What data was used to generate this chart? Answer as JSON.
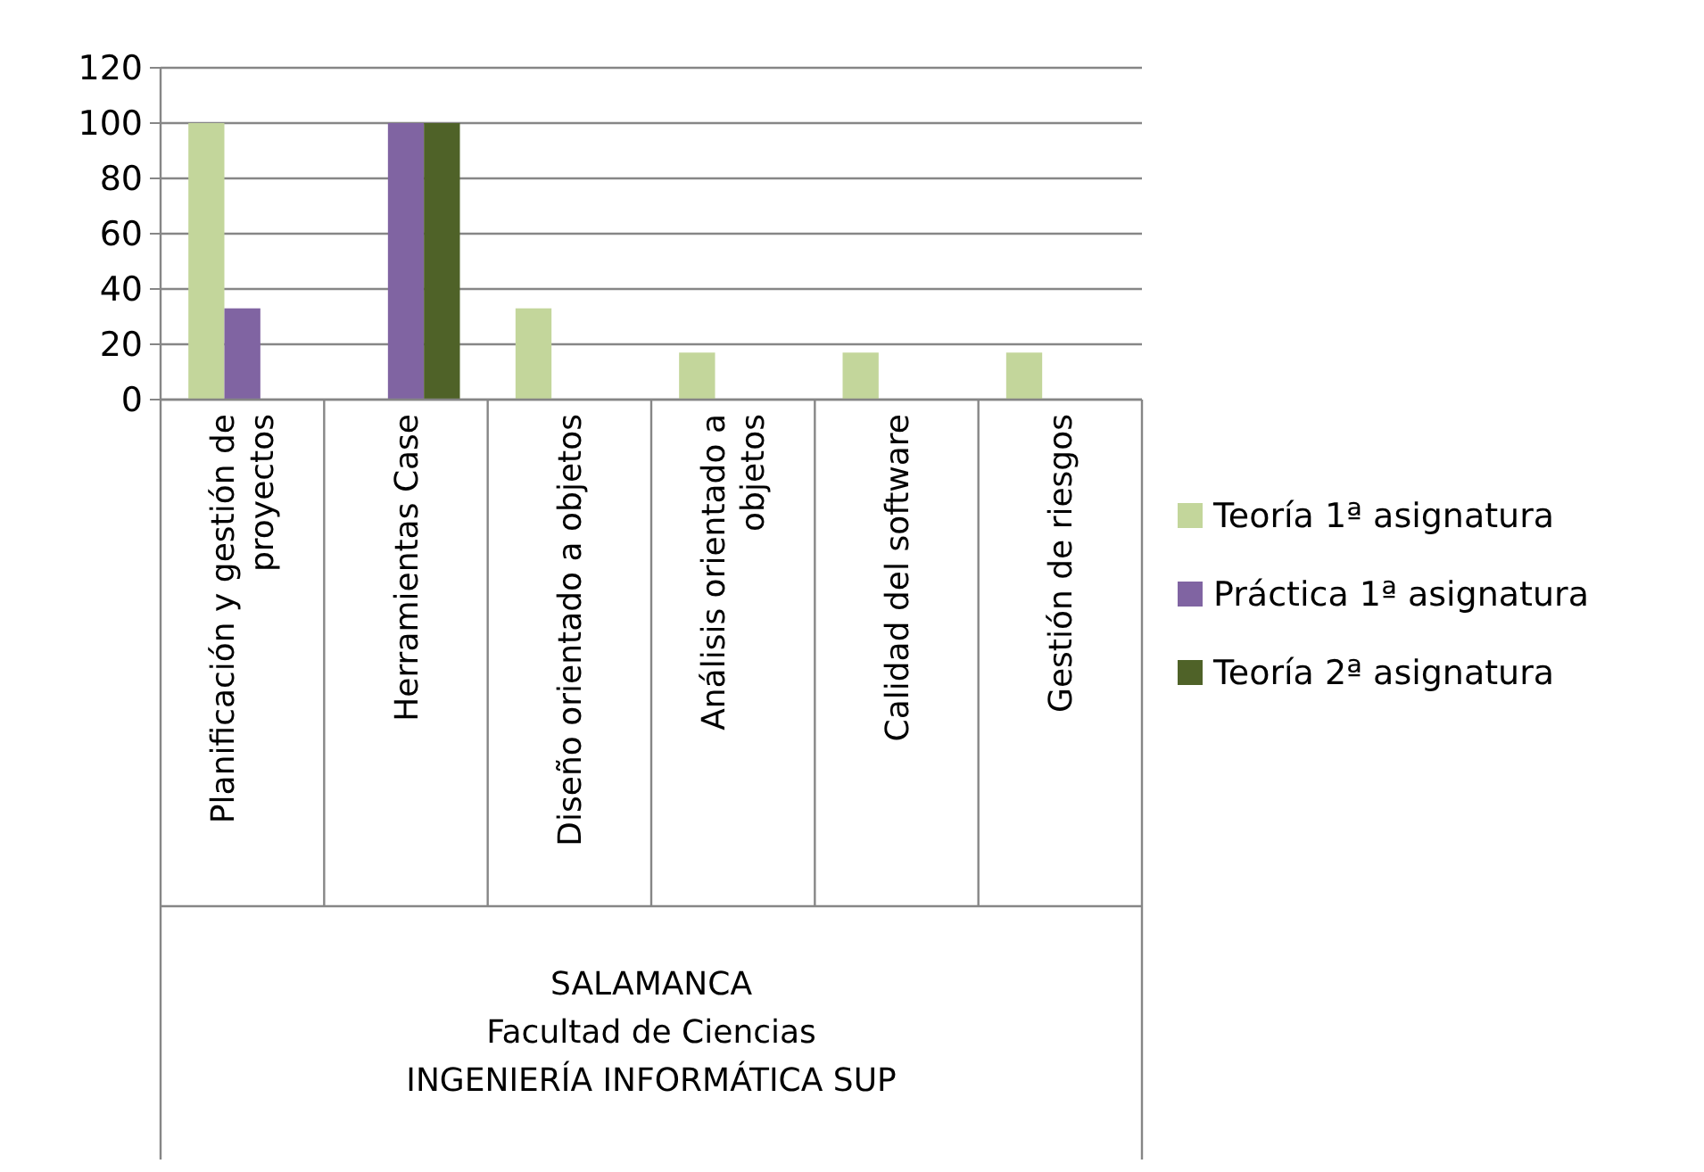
{
  "chart_data": {
    "type": "bar",
    "categories": [
      "Planificación y gestión de proyectos",
      "Herramientas Case",
      "Diseño orientado a objetos",
      "Análisis orientado a objetos",
      "Calidad del software",
      "Gestión de riesgos"
    ],
    "xlabel": "SALAMANCA\nFacultad de Ciencias\nINGENIERÍA INFORMÁTICA SUP",
    "series": [
      {
        "name": "Teoría 1ª asignatura",
        "color": "#c3d69b",
        "values": [
          100,
          null,
          33,
          17,
          17,
          17
        ]
      },
      {
        "name": "Práctica 1ª asignatura",
        "color": "#8064a2",
        "values": [
          33,
          100,
          null,
          null,
          null,
          null
        ]
      },
      {
        "name": "Teoría 2ª asignatura",
        "color": "#4f6228",
        "values": [
          null,
          100,
          null,
          null,
          null,
          null
        ]
      }
    ],
    "ylim": [
      0,
      120
    ],
    "yticks": [
      0,
      20,
      40,
      60,
      80,
      100,
      120
    ],
    "grid": "y",
    "legend": "right"
  }
}
